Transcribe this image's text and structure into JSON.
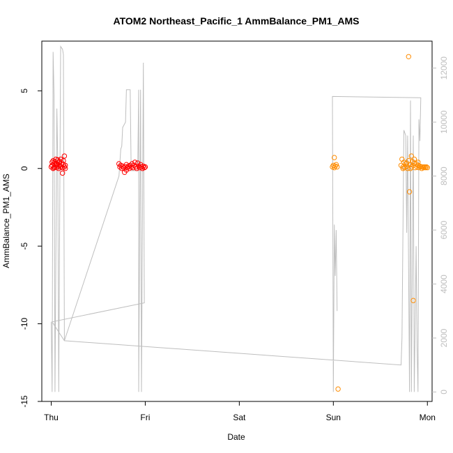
{
  "chart_data": {
    "type": "scatter",
    "title": "ATOM2 Northeast_Pacific_1 AmmBalance_PM1_AMS",
    "xlabel": "Date",
    "ylabel": "AmmBalance_PM1_AMS",
    "x_ticks": [
      "Thu",
      "Fri",
      "Sat",
      "Sun",
      "Mon"
    ],
    "x_domain_days": [
      0,
      4
    ],
    "xlim_days": [
      -0.1,
      4.05
    ],
    "ylim": [
      -15,
      8.2
    ],
    "y_ticks": [
      -15,
      -10,
      -5,
      0,
      5
    ],
    "y2_ticks": [
      0,
      2000,
      4000,
      6000,
      8000,
      10000,
      12000
    ],
    "y2lim": [
      -350,
      13000
    ],
    "grid": false,
    "series": [
      {
        "color": "#ff0000",
        "marker": "open-circle",
        "points": [
          [
            0.0,
            0.1
          ],
          [
            0.01,
            0.4
          ],
          [
            0.01,
            0.2
          ],
          [
            0.02,
            0.5
          ],
          [
            0.02,
            0.0
          ],
          [
            0.03,
            0.3
          ],
          [
            0.04,
            0.1
          ],
          [
            0.04,
            0.45
          ],
          [
            0.05,
            0.25
          ],
          [
            0.06,
            0.05
          ],
          [
            0.06,
            0.3
          ],
          [
            0.07,
            0.55
          ],
          [
            0.07,
            0.15
          ],
          [
            0.08,
            0.4
          ],
          [
            0.08,
            0.0
          ],
          [
            0.09,
            0.2
          ],
          [
            0.1,
            0.6
          ],
          [
            0.1,
            0.1
          ],
          [
            0.11,
            0.35
          ],
          [
            0.12,
            -0.3
          ],
          [
            0.12,
            0.05
          ],
          [
            0.13,
            0.25
          ],
          [
            0.13,
            0.5
          ],
          [
            0.14,
            0.1
          ],
          [
            0.14,
            0.8
          ],
          [
            0.15,
            0.2
          ],
          [
            0.15,
            0.0
          ],
          [
            0.03,
            0.05
          ],
          [
            0.05,
            0.6
          ],
          [
            0.09,
            0.45
          ],
          [
            0.72,
            0.3
          ],
          [
            0.73,
            0.1
          ],
          [
            0.74,
            0.2
          ],
          [
            0.75,
            0.0
          ],
          [
            0.76,
            0.15
          ],
          [
            0.77,
            0.05
          ],
          [
            0.78,
            -0.25
          ],
          [
            0.79,
            0.1
          ],
          [
            0.8,
            0.25
          ],
          [
            0.81,
            0.05
          ],
          [
            0.82,
            0.15
          ],
          [
            0.83,
            0.0
          ],
          [
            0.84,
            0.2
          ],
          [
            0.85,
            0.1
          ],
          [
            0.86,
            0.3
          ],
          [
            0.87,
            0.05
          ],
          [
            0.88,
            0.2
          ],
          [
            0.89,
            0.4
          ],
          [
            0.9,
            0.1
          ],
          [
            0.91,
            0.0
          ],
          [
            0.92,
            0.35
          ],
          [
            0.93,
            0.15
          ],
          [
            0.94,
            0.05
          ],
          [
            0.95,
            0.25
          ],
          [
            0.96,
            0.1
          ],
          [
            0.97,
            0.0
          ],
          [
            0.98,
            0.15
          ],
          [
            0.99,
            0.05
          ],
          [
            1.0,
            0.1
          ],
          [
            0.8,
            -0.1
          ]
        ]
      },
      {
        "color": "#ff8c00",
        "marker": "open-circle",
        "points": [
          [
            2.99,
            0.1
          ],
          [
            3.0,
            0.2
          ],
          [
            3.01,
            0.7
          ],
          [
            3.01,
            0.05
          ],
          [
            3.02,
            0.15
          ],
          [
            3.03,
            0.25
          ],
          [
            3.04,
            0.1
          ],
          [
            3.05,
            -14.2
          ],
          [
            3.72,
            0.2
          ],
          [
            3.73,
            0.6
          ],
          [
            3.74,
            0.1
          ],
          [
            3.75,
            0.4
          ],
          [
            3.76,
            0.05
          ],
          [
            3.77,
            0.3
          ],
          [
            3.78,
            0.15
          ],
          [
            3.79,
            0.0
          ],
          [
            3.8,
            0.5
          ],
          [
            3.8,
            7.2
          ],
          [
            3.81,
            -1.5
          ],
          [
            3.82,
            0.25
          ],
          [
            3.83,
            0.8
          ],
          [
            3.83,
            0.1
          ],
          [
            3.84,
            0.45
          ],
          [
            3.85,
            -8.5
          ],
          [
            3.85,
            0.2
          ],
          [
            3.86,
            0.6
          ],
          [
            3.87,
            0.05
          ],
          [
            3.88,
            0.3
          ],
          [
            3.89,
            0.1
          ],
          [
            3.9,
            0.2
          ],
          [
            3.91,
            0.05
          ],
          [
            3.92,
            0.15
          ],
          [
            3.93,
            0.1
          ],
          [
            3.94,
            0.0
          ],
          [
            3.95,
            0.1
          ],
          [
            3.96,
            0.05
          ],
          [
            3.97,
            0.1
          ],
          [
            3.98,
            0.05
          ],
          [
            3.99,
            0.1
          ],
          [
            4.0,
            0.05
          ],
          [
            3.74,
            0.0
          ],
          [
            3.78,
            0.35
          ],
          [
            3.82,
            0.0
          ],
          [
            3.86,
            0.35
          ],
          [
            3.9,
            0.4
          ]
        ]
      },
      {
        "color": "#bebebe",
        "marker": "line",
        "axis": "right",
        "points": [
          [
            0.0,
            2600
          ],
          [
            0.01,
            0
          ],
          [
            0.02,
            12600
          ],
          [
            0.03,
            11000
          ],
          [
            0.04,
            0
          ],
          [
            0.06,
            10500
          ],
          [
            0.07,
            8500
          ],
          [
            0.08,
            0
          ],
          [
            0.1,
            12800
          ],
          [
            0.12,
            12700
          ],
          [
            0.13,
            12500
          ],
          [
            0.14,
            1900
          ],
          [
            0.72,
            8000
          ],
          [
            0.74,
            9000
          ],
          [
            0.75,
            9100
          ],
          [
            0.76,
            9800
          ],
          [
            0.79,
            10000
          ],
          [
            0.8,
            11200
          ],
          [
            0.84,
            11200
          ],
          [
            0.85,
            8200
          ],
          [
            0.92,
            8200
          ],
          [
            0.93,
            11200
          ],
          [
            0.93,
            0
          ],
          [
            0.95,
            11200
          ],
          [
            0.96,
            0
          ],
          [
            0.98,
            12200
          ],
          [
            0.99,
            3300
          ],
          [
            0.01,
            2600
          ],
          [
            0.14,
            1900
          ],
          [
            3.72,
            1000
          ],
          [
            3.73,
            2000
          ],
          [
            3.75,
            9700
          ],
          [
            3.77,
            9500
          ],
          [
            3.78,
            5900
          ],
          [
            3.79,
            9500
          ],
          [
            3.81,
            0
          ],
          [
            3.82,
            10800
          ],
          [
            3.83,
            0
          ],
          [
            3.85,
            9500
          ],
          [
            3.86,
            0
          ],
          [
            3.88,
            5400
          ],
          [
            3.89,
            1700
          ],
          [
            3.9,
            0
          ],
          [
            3.91,
            10100
          ],
          [
            3.92,
            9300
          ],
          [
            3.93,
            10900
          ],
          [
            2.99,
            10950
          ],
          [
            3.0,
            0
          ],
          [
            3.01,
            6200
          ],
          [
            3.02,
            4300
          ],
          [
            3.03,
            6000
          ],
          [
            3.04,
            3000
          ]
        ]
      }
    ]
  }
}
